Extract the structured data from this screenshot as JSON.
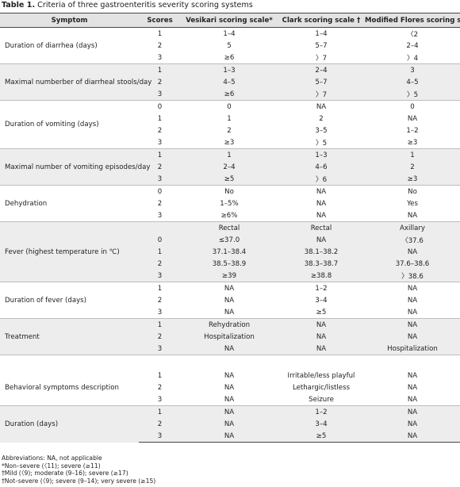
{
  "title": {
    "label": "Table 1.",
    "text": "Criteria of three gastroenteritis severity scoring systems"
  },
  "table": {
    "header": [
      "Symptom",
      "Scores",
      "Vesikari scoring scale*",
      "Clark scoring scale †",
      "Modified Flores scoring scale †"
    ],
    "groups": [
      {
        "symptom": "Duration of diarrhea (days)",
        "rows": [
          [
            "1",
            "1–4",
            "1–4",
            "〈2"
          ],
          [
            "2",
            "5",
            "5–7",
            "2–4"
          ],
          [
            "3",
            "≥6",
            "〉7",
            "〉4"
          ]
        ]
      },
      {
        "symptom": "Maximal numberber of diarrheal stools/day",
        "rows": [
          [
            "1",
            "1–3",
            "2–4",
            "3"
          ],
          [
            "2",
            "4–5",
            "5–7",
            "4–5"
          ],
          [
            "3",
            "≥6",
            "〉7",
            "〉5"
          ]
        ]
      },
      {
        "symptom": "Duration of vomiting (days)",
        "rows": [
          [
            "0",
            "0",
            "NA",
            "0"
          ],
          [
            "1",
            "1",
            "2",
            "NA"
          ],
          [
            "2",
            "2",
            "3–5",
            "1–2"
          ],
          [
            "3",
            "≥3",
            "〉5",
            "≥3"
          ]
        ]
      },
      {
        "symptom": "Maximal number of vomiting episodes/day",
        "rows": [
          [
            "1",
            "1",
            "1–3",
            "1"
          ],
          [
            "2",
            "2–4",
            "4–6",
            "2"
          ],
          [
            "3",
            "≥5",
            "〉6",
            "≥3"
          ]
        ]
      },
      {
        "symptom": "Dehydration",
        "rows": [
          [
            "0",
            "No",
            "NA",
            "No"
          ],
          [
            "2",
            "1–5%",
            "NA",
            "Yes"
          ],
          [
            "3",
            "≥6%",
            "NA",
            "NA"
          ]
        ]
      },
      {
        "symptom": "Fever (highest temperature in ℃)",
        "rows": [
          [
            null,
            "Rectal",
            "Rectal",
            "Axillary"
          ],
          [
            "0",
            "≤37.0",
            "NA",
            "〈37.6"
          ],
          [
            "1",
            "37.1–38.4",
            "38.1–38.2",
            "NA"
          ],
          [
            "2",
            "38.5–38.9",
            "38.3–38.7",
            "37.6–38.6"
          ],
          [
            "3",
            "≥39",
            "≥38.8",
            "〉38.6"
          ]
        ]
      },
      {
        "symptom": "Duration of fever (days)",
        "rows": [
          [
            "1",
            "NA",
            "1–2",
            "NA"
          ],
          [
            "2",
            "NA",
            "3–4",
            "NA"
          ],
          [
            "3",
            "NA",
            "≥5",
            "NA"
          ]
        ]
      },
      {
        "symptom": "Treatment",
        "rows": [
          [
            "1",
            "Rehydration",
            "NA",
            "NA"
          ],
          [
            "2",
            "Hospitalization",
            "NA",
            "NA"
          ],
          [
            "3",
            "NA",
            "NA",
            "Hospitalization"
          ]
        ]
      },
      {
        "symptom": "Behavioral symptoms description",
        "rows": [
          [
            "1",
            "NA",
            "Irritable/less playful",
            "NA"
          ],
          [
            "2",
            "NA",
            "Lethargic/listless",
            "NA"
          ],
          [
            "3",
            "NA",
            "Seizure",
            "NA"
          ]
        ]
      },
      {
        "symptom": "Duration (days)",
        "rows": [
          [
            "1",
            "NA",
            "1–2",
            "NA"
          ],
          [
            "2",
            "NA",
            "3–4",
            "NA"
          ],
          [
            "3",
            "NA",
            "≥5",
            "NA"
          ]
        ]
      }
    ]
  },
  "footnotes": [
    "Abbreviations: NA, not applicable",
    "*Non–severe (〈11); severe (≥11)",
    "†Mild (〈9); moderate (9–16); severe (≥17)",
    "†Not–severe (〈9); severe (9–14); very severe (≥15)"
  ]
}
